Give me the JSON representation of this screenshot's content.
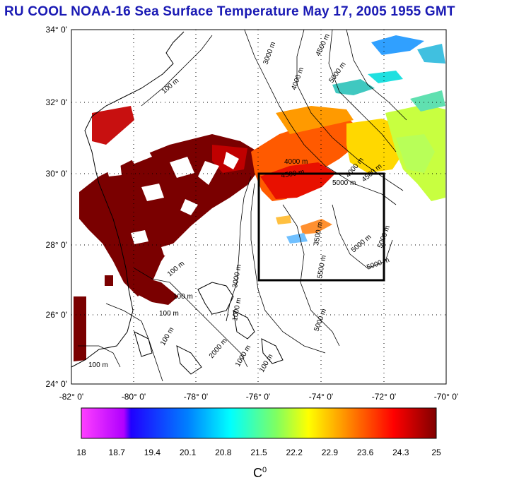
{
  "title": "RU COOL  NOAA-16 Sea Surface Temperature May 17, 2005 1955 GMT",
  "lat_labels": [
    "34° 0'",
    "32° 0'",
    "30° 0'",
    "28° 0'",
    "26° 0'",
    "24° 0'"
  ],
  "lon_labels": [
    "-82° 0'",
    "-80° 0'",
    "-78° 0'",
    "-76° 0'",
    "-74° 0'",
    "-72° 0'",
    "-70° 0'"
  ],
  "colorbar": {
    "tick_labels": [
      "18",
      "18.7",
      "19.4",
      "20.1",
      "20.8",
      "21.5",
      "22.2",
      "22.9",
      "23.6",
      "24.3",
      "25"
    ],
    "unit": "C",
    "unit_sup": "0",
    "colors": [
      "#ff00ff",
      "#7f00ff",
      "#0000ff",
      "#0080ff",
      "#00ffff",
      "#80ff80",
      "#ffff00",
      "#ff8000",
      "#ff0000",
      "#7f0000"
    ]
  },
  "isobath_labels": [
    "100 m",
    "3000 m",
    "4000 m",
    "4500 m",
    "5000 m",
    "4000 m",
    "4500 m",
    "5000 m",
    "4000 m",
    "4500 m",
    "5000 m",
    "5000 m",
    "5000 m",
    "3500 m",
    "5500 m",
    "5000 m",
    "100 m",
    "3000 m",
    "100 m",
    "100 m",
    "100 m",
    "100 m",
    "1000 m",
    "2000 m",
    "1000 m",
    "100 m"
  ],
  "region_box": {
    "lon_min": -76,
    "lon_max": -72,
    "lat_min": 27,
    "lat_max": 30
  }
}
